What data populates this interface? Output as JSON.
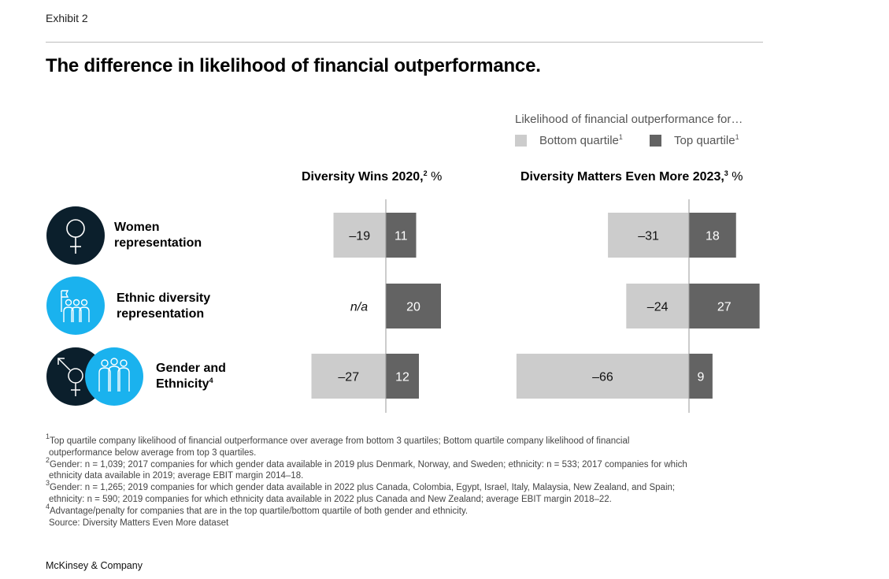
{
  "header": {
    "exhibit": "Exhibit 2",
    "title": "The difference in likelihood of financial outperformance."
  },
  "legend": {
    "title": "Likelihood of financial outperformance for…",
    "items": [
      {
        "label": "Bottom quartile",
        "sup": "1",
        "color": "#cccccc"
      },
      {
        "label": "Top quartile",
        "sup": "1",
        "color": "#636363"
      }
    ]
  },
  "panels": [
    {
      "title": "Diversity Wins 2020,",
      "sup": "2",
      "unit": " %"
    },
    {
      "title": "Diversity Matters Even More 2023,",
      "sup": "3",
      "unit": " %"
    }
  ],
  "rows": [
    {
      "label_line1": "Women",
      "label_line2": "representation",
      "sup": "",
      "icon": "female-symbol-icon"
    },
    {
      "label_line1": "Ethnic diversity",
      "label_line2": "representation",
      "sup": "",
      "icon": "diverse-people-group-icon"
    },
    {
      "label_line1": "Gender and",
      "label_line2": "Ethnicity",
      "sup": "4",
      "icon": "gender-symbol-and-people-group-icon"
    }
  ],
  "chart_data": [
    {
      "type": "bar",
      "orientation": "horizontal-diverging",
      "title": "Diversity Wins 2020, %",
      "categories": [
        "Women representation",
        "Ethnic diversity representation",
        "Gender and Ethnicity"
      ],
      "series": [
        {
          "name": "Bottom quartile",
          "values": [
            -19,
            null,
            -27
          ],
          "labels": [
            "–19",
            "n/a",
            "–27"
          ]
        },
        {
          "name": "Top quartile",
          "values": [
            11,
            20,
            12
          ],
          "labels": [
            "11",
            "20",
            "12"
          ]
        }
      ]
    },
    {
      "type": "bar",
      "orientation": "horizontal-diverging",
      "title": "Diversity Matters Even More 2023, %",
      "categories": [
        "Women representation",
        "Ethnic diversity representation",
        "Gender and Ethnicity"
      ],
      "series": [
        {
          "name": "Bottom quartile",
          "values": [
            -31,
            -24,
            -66
          ],
          "labels": [
            "–31",
            "–24",
            "–66"
          ]
        },
        {
          "name": "Top quartile",
          "values": [
            18,
            27,
            9
          ],
          "labels": [
            "18",
            "27",
            "9"
          ]
        }
      ]
    }
  ],
  "colors": {
    "bottom": "#cccccc",
    "top": "#636363",
    "icon_dark": "#0b1f2c",
    "icon_blue": "#1ab2ee",
    "axis": "#9a9a9a"
  },
  "footnotes": [
    {
      "sup": "1",
      "line1": "Top quartile company likelihood of financial outperformance over average from bottom 3 quartiles; Bottom quartile company likelihood of financial",
      "line2": "outperformance below average from top 3 quartiles."
    },
    {
      "sup": "2",
      "line1": "Gender: n = 1,039; 2017 companies for which gender data available in 2019 plus Denmark, Norway, and Sweden; ethnicity: n = 533; 2017 companies for which",
      "line2": "ethnicity data available in 2019; average EBIT margin 2014–18."
    },
    {
      "sup": "3",
      "line1": "Gender: n = 1,265; 2019 companies for which gender data available in 2022 plus Canada, Colombia, Egypt, Israel, Italy, Malaysia, New Zealand, and Spain;",
      "line2": "ethnicity: n = 590; 2019 companies for which ethnicity data available in 2022 plus Canada and New Zealand; average EBIT margin 2018–22."
    },
    {
      "sup": "4",
      "line1": "Advantage/penalty for companies that are in the top quartile/bottom quartile of both gender and ethnicity.",
      "line2": ""
    }
  ],
  "source": "Source: Diversity Matters Even More dataset",
  "brand": "McKinsey & Company"
}
